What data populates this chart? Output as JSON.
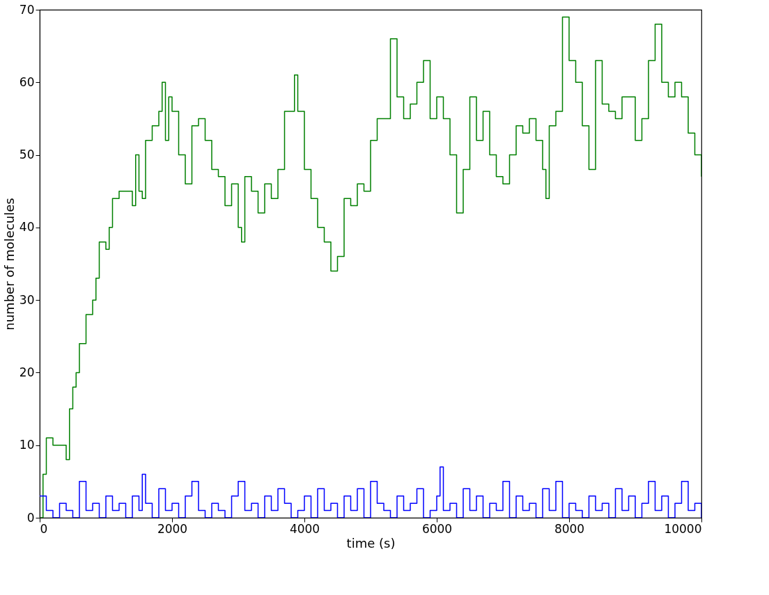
{
  "chart_data": {
    "type": "step",
    "xlabel": "time (s)",
    "ylabel": "number of molecules",
    "xlim": [
      0,
      10000
    ],
    "ylim": [
      0,
      70
    ],
    "xticks": [
      0,
      2000,
      4000,
      6000,
      8000,
      10000
    ],
    "yticks": [
      0,
      10,
      20,
      30,
      40,
      50,
      60,
      70
    ],
    "grid": false,
    "marker": "none",
    "line_style": "solid",
    "series": [
      {
        "color": "#008000",
        "x": [
          0,
          50,
          100,
          150,
          200,
          300,
          400,
          450,
          500,
          550,
          600,
          700,
          800,
          850,
          900,
          1000,
          1050,
          1100,
          1200,
          1300,
          1400,
          1450,
          1500,
          1550,
          1600,
          1700,
          1800,
          1850,
          1900,
          1950,
          2000,
          2100,
          2200,
          2300,
          2400,
          2500,
          2600,
          2700,
          2800,
          2900,
          3000,
          3050,
          3100,
          3200,
          3300,
          3400,
          3500,
          3600,
          3700,
          3800,
          3850,
          3900,
          4000,
          4100,
          4200,
          4300,
          4400,
          4500,
          4600,
          4700,
          4800,
          4900,
          5000,
          5100,
          5200,
          5300,
          5400,
          5500,
          5600,
          5700,
          5800,
          5900,
          6000,
          6100,
          6200,
          6300,
          6400,
          6500,
          6600,
          6700,
          6800,
          6900,
          7000,
          7100,
          7200,
          7300,
          7400,
          7500,
          7600,
          7650,
          7700,
          7800,
          7900,
          8000,
          8100,
          8200,
          8300,
          8400,
          8500,
          8600,
          8700,
          8800,
          8900,
          9000,
          9100,
          9200,
          9300,
          9400,
          9500,
          9600,
          9700,
          9800,
          9900,
          10000
        ],
        "values": [
          0,
          6,
          11,
          11,
          10,
          10,
          8,
          15,
          18,
          20,
          24,
          28,
          30,
          33,
          38,
          37,
          40,
          44,
          45,
          45,
          43,
          50,
          45,
          44,
          52,
          54,
          56,
          60,
          52,
          58,
          56,
          50,
          46,
          54,
          55,
          52,
          48,
          47,
          43,
          46,
          40,
          38,
          47,
          45,
          42,
          46,
          44,
          48,
          56,
          56,
          61,
          56,
          48,
          44,
          40,
          38,
          34,
          36,
          44,
          43,
          46,
          45,
          52,
          55,
          55,
          66,
          58,
          55,
          57,
          60,
          63,
          55,
          58,
          55,
          50,
          42,
          48,
          58,
          52,
          56,
          50,
          47,
          46,
          50,
          54,
          53,
          55,
          52,
          48,
          44,
          54,
          56,
          69,
          63,
          60,
          54,
          48,
          63,
          57,
          56,
          55,
          58,
          58,
          52,
          55,
          63,
          68,
          60,
          58,
          60,
          58,
          53,
          50,
          47
        ]
      },
      {
        "color": "#0000ff",
        "x": [
          0,
          100,
          200,
          300,
          400,
          500,
          600,
          700,
          800,
          900,
          1000,
          1100,
          1200,
          1300,
          1400,
          1500,
          1550,
          1600,
          1700,
          1800,
          1900,
          2000,
          2100,
          2200,
          2300,
          2400,
          2500,
          2600,
          2700,
          2800,
          2900,
          3000,
          3100,
          3200,
          3300,
          3400,
          3500,
          3600,
          3700,
          3800,
          3900,
          4000,
          4100,
          4200,
          4300,
          4400,
          4500,
          4600,
          4700,
          4800,
          4900,
          5000,
          5100,
          5200,
          5300,
          5400,
          5500,
          5600,
          5700,
          5800,
          5900,
          6000,
          6050,
          6100,
          6200,
          6300,
          6400,
          6500,
          6600,
          6700,
          6800,
          6900,
          7000,
          7100,
          7200,
          7300,
          7400,
          7500,
          7600,
          7700,
          7800,
          7900,
          8000,
          8100,
          8200,
          8300,
          8400,
          8500,
          8600,
          8700,
          8800,
          8900,
          9000,
          9100,
          9200,
          9300,
          9400,
          9500,
          9600,
          9700,
          9800,
          9900,
          10000
        ],
        "values": [
          3,
          1,
          0,
          2,
          1,
          0,
          5,
          1,
          2,
          0,
          3,
          1,
          2,
          0,
          3,
          1,
          6,
          2,
          0,
          4,
          1,
          2,
          0,
          3,
          5,
          1,
          0,
          2,
          1,
          0,
          3,
          5,
          1,
          2,
          0,
          3,
          1,
          4,
          2,
          0,
          1,
          3,
          0,
          4,
          1,
          2,
          0,
          3,
          1,
          4,
          0,
          5,
          2,
          1,
          0,
          3,
          1,
          2,
          4,
          0,
          1,
          3,
          7,
          1,
          2,
          0,
          4,
          1,
          3,
          0,
          2,
          1,
          5,
          0,
          3,
          1,
          2,
          0,
          4,
          1,
          5,
          0,
          2,
          1,
          0,
          3,
          1,
          2,
          0,
          4,
          1,
          3,
          0,
          2,
          5,
          1,
          3,
          0,
          2,
          5,
          1,
          2,
          0
        ]
      }
    ]
  }
}
